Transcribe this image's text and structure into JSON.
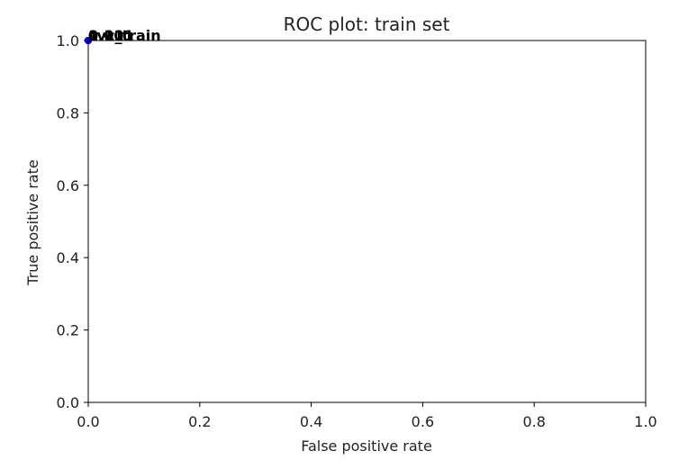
{
  "chart_data": {
    "type": "scatter",
    "title": "ROC plot: train set",
    "xlabel": "False positive rate",
    "ylabel": "True positive rate",
    "xlim": [
      0.0,
      1.0
    ],
    "ylim": [
      0.0,
      1.0
    ],
    "x_ticks": [
      "0.0",
      "0.2",
      "0.4",
      "0.6",
      "0.8",
      "1.0"
    ],
    "y_ticks": [
      "0.0",
      "0.2",
      "0.4",
      "0.6",
      "0.8",
      "1.0"
    ],
    "grid": false,
    "point_color": "#0000ff",
    "annotation_color": "#000000",
    "points": [
      {
        "label": "svc_train",
        "x": 0.0,
        "y": 1.0
      },
      {
        "label": "0.001",
        "x": 0.0,
        "y": 1.0
      },
      {
        "label": "0.01",
        "x": 0.0,
        "y": 1.0
      },
      {
        "label": "0.1",
        "x": 0.0,
        "y": 1.0
      },
      {
        "label": "1",
        "x": 0.0,
        "y": 1.0
      }
    ]
  }
}
